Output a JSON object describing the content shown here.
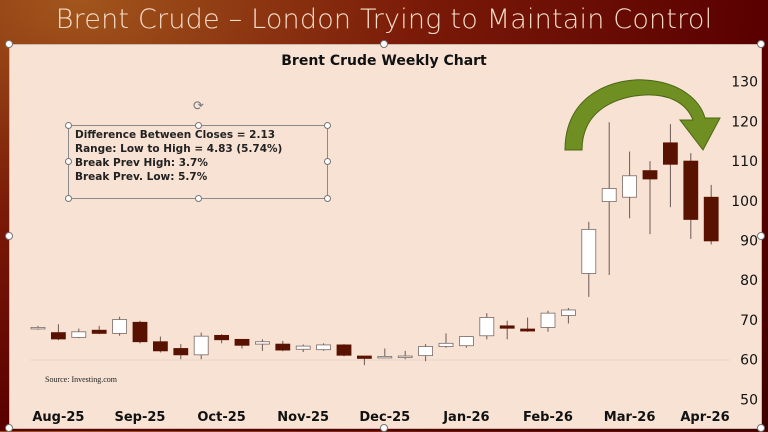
{
  "slide_title": "Brent Crude – London Trying to Maintain Control",
  "textbox": {
    "lines": [
      "Difference Between Closes = 2.13",
      "Range: Low to High = 4.83 (5.74%)",
      "Break Prev High: 3.7%",
      "Break Prev. Low:  5.7%"
    ]
  },
  "source": "Source: Investing.com",
  "colors": {
    "down": "#5a1200",
    "up": "#ffffff",
    "arrow": "#6f8f22",
    "panel": "#f7e2d4"
  },
  "chart_data": {
    "type": "candlestick",
    "title": "Brent Crude Weekly Chart",
    "xlabel": "",
    "ylabel": "",
    "ylim": [
      50,
      130
    ],
    "yticks": [
      50,
      60,
      70,
      80,
      90,
      100,
      110,
      120,
      130
    ],
    "x_tick_labels": [
      {
        "label": "Aug-25",
        "index": 1
      },
      {
        "label": "Sep-25",
        "index": 5
      },
      {
        "label": "Oct-25",
        "index": 9
      },
      {
        "label": "Nov-25",
        "index": 13
      },
      {
        "label": "Dec-25",
        "index": 17
      },
      {
        "label": "Jan-26",
        "index": 21
      },
      {
        "label": "Feb-26",
        "index": 25
      },
      {
        "label": "Mar-26",
        "index": 29
      },
      {
        "label": "Apr-26",
        "index": 33
      }
    ],
    "ohlc": [
      [
        68.0,
        68.5,
        67.5,
        68.1
      ],
      [
        66.8,
        68.9,
        64.9,
        65.2
      ],
      [
        65.6,
        67.8,
        65.4,
        67.0
      ],
      [
        67.4,
        68.5,
        66.4,
        66.6
      ],
      [
        66.6,
        70.8,
        66.0,
        70.1
      ],
      [
        69.4,
        69.8,
        64.1,
        64.5
      ],
      [
        64.5,
        65.8,
        61.8,
        62.2
      ],
      [
        62.8,
        63.9,
        60.1,
        61.2
      ],
      [
        61.2,
        66.8,
        60.1,
        65.9
      ],
      [
        66.1,
        66.4,
        64.1,
        65.0
      ],
      [
        65.1,
        65.2,
        62.8,
        63.6
      ],
      [
        63.9,
        65.1,
        62.2,
        64.5
      ],
      [
        63.9,
        64.7,
        62.1,
        62.4
      ],
      [
        62.6,
        63.8,
        61.9,
        63.4
      ],
      [
        62.5,
        64.1,
        62.2,
        63.7
      ],
      [
        63.7,
        63.9,
        60.8,
        61.1
      ],
      [
        60.9,
        60.9,
        58.6,
        60.3
      ],
      [
        60.7,
        62.8,
        60.6,
        60.8
      ],
      [
        60.8,
        62.2,
        60.1,
        60.9
      ],
      [
        61.0,
        63.9,
        59.6,
        63.3
      ],
      [
        63.3,
        66.6,
        63.0,
        64.1
      ],
      [
        63.5,
        65.9,
        63.0,
        65.8
      ],
      [
        66.0,
        71.7,
        65.1,
        70.6
      ],
      [
        68.5,
        69.8,
        65.1,
        67.9
      ],
      [
        67.7,
        70.6,
        67.0,
        67.2
      ],
      [
        68.1,
        72.3,
        67.0,
        71.7
      ],
      [
        71.1,
        73.0,
        69.1,
        72.5
      ],
      [
        81.7,
        94.7,
        75.8,
        92.8
      ],
      [
        99.8,
        119.8,
        81.3,
        103.1
      ],
      [
        100.9,
        112.4,
        95.6,
        106.3
      ],
      [
        107.6,
        110.0,
        91.6,
        105.5
      ],
      [
        114.6,
        119.3,
        98.4,
        109.2
      ],
      [
        110.0,
        112.0,
        90.4,
        95.3
      ],
      [
        100.9,
        104.0,
        89.0,
        89.9
      ]
    ]
  }
}
